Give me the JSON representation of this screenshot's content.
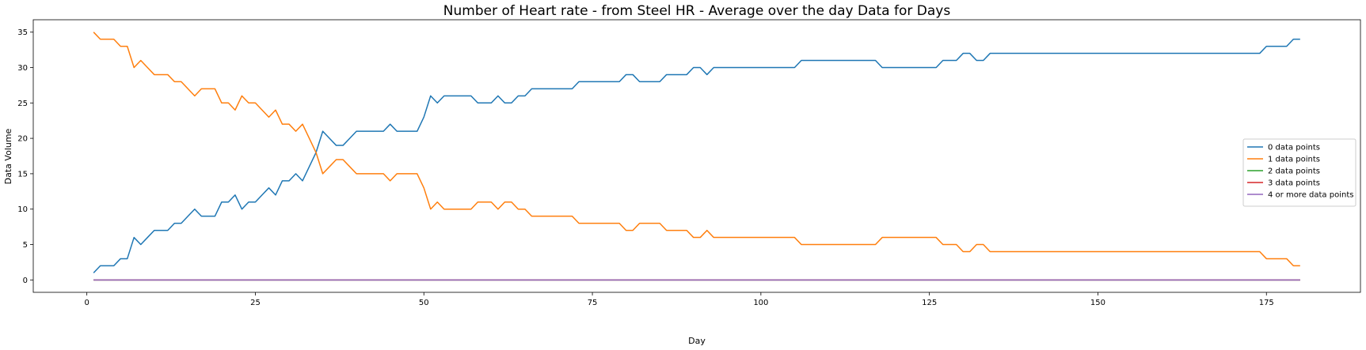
{
  "chart_data": {
    "type": "line",
    "title": "Number of Heart rate - from Steel HR - Average over the day Data for Days",
    "xlabel": "Day",
    "ylabel": "Data Volume",
    "xlim": [
      -7.95,
      188.95
    ],
    "ylim": [
      -1.75,
      36.75
    ],
    "xticks": [
      0,
      25,
      50,
      75,
      100,
      125,
      150,
      175
    ],
    "yticks": [
      0,
      5,
      10,
      15,
      20,
      25,
      30,
      35
    ],
    "grid": false,
    "legend_position": "center-right",
    "x_start": 1,
    "series": [
      {
        "name": "0 data points",
        "color": "#1f77b4",
        "values": [
          1,
          2,
          2,
          2,
          3,
          3,
          6,
          5,
          6,
          7,
          7,
          7,
          8,
          8,
          9,
          10,
          9,
          9,
          9,
          11,
          11,
          12,
          10,
          11,
          11,
          12,
          13,
          12,
          14,
          14,
          15,
          14,
          16,
          18,
          21,
          20,
          19,
          19,
          20,
          21,
          21,
          21,
          21,
          21,
          22,
          21,
          21,
          21,
          21,
          23,
          26,
          25,
          26,
          26,
          26,
          26,
          26,
          25,
          25,
          25,
          26,
          25,
          25,
          26,
          26,
          27,
          27,
          27,
          27,
          27,
          27,
          27,
          28,
          28,
          28,
          28,
          28,
          28,
          28,
          29,
          29,
          28,
          28,
          28,
          28,
          29,
          29,
          29,
          29,
          30,
          30,
          29,
          30,
          30,
          30,
          30,
          30,
          30,
          30,
          30,
          30,
          30,
          30,
          30,
          30,
          31,
          31,
          31,
          31,
          31,
          31,
          31,
          31,
          31,
          31,
          31,
          31,
          30,
          30,
          30,
          30,
          30,
          30,
          30,
          30,
          30,
          31,
          31,
          31,
          32,
          32,
          31,
          31,
          32,
          32,
          32,
          32,
          32,
          32,
          32,
          32,
          32,
          32,
          32,
          32,
          32,
          32,
          32,
          32,
          32,
          32,
          32,
          32,
          32,
          32,
          32,
          32,
          32,
          32,
          32,
          32,
          32,
          32,
          32,
          32,
          32,
          32,
          32,
          32,
          32,
          32,
          32,
          32,
          32,
          33,
          33,
          33,
          33,
          34,
          34
        ]
      },
      {
        "name": "1 data points",
        "color": "#ff7f0e",
        "values": [
          35,
          34,
          34,
          34,
          33,
          33,
          30,
          31,
          30,
          29,
          29,
          29,
          28,
          28,
          27,
          26,
          27,
          27,
          27,
          25,
          25,
          24,
          26,
          25,
          25,
          24,
          23,
          24,
          22,
          22,
          21,
          22,
          20,
          18,
          15,
          16,
          17,
          17,
          16,
          15,
          15,
          15,
          15,
          15,
          14,
          15,
          15,
          15,
          15,
          13,
          10,
          11,
          10,
          10,
          10,
          10,
          10,
          11,
          11,
          11,
          10,
          11,
          11,
          10,
          10,
          9,
          9,
          9,
          9,
          9,
          9,
          9,
          8,
          8,
          8,
          8,
          8,
          8,
          8,
          7,
          7,
          8,
          8,
          8,
          8,
          7,
          7,
          7,
          7,
          6,
          6,
          7,
          6,
          6,
          6,
          6,
          6,
          6,
          6,
          6,
          6,
          6,
          6,
          6,
          6,
          5,
          5,
          5,
          5,
          5,
          5,
          5,
          5,
          5,
          5,
          5,
          5,
          6,
          6,
          6,
          6,
          6,
          6,
          6,
          6,
          6,
          5,
          5,
          5,
          4,
          4,
          5,
          5,
          4,
          4,
          4,
          4,
          4,
          4,
          4,
          4,
          4,
          4,
          4,
          4,
          4,
          4,
          4,
          4,
          4,
          4,
          4,
          4,
          4,
          4,
          4,
          4,
          4,
          4,
          4,
          4,
          4,
          4,
          4,
          4,
          4,
          4,
          4,
          4,
          4,
          4,
          4,
          4,
          4,
          3,
          3,
          3,
          3,
          2,
          2
        ]
      },
      {
        "name": "2 data points",
        "color": "#2ca02c",
        "constant": 0
      },
      {
        "name": "3 data points",
        "color": "#d62728",
        "constant": 0
      },
      {
        "name": "4 or more data points",
        "color": "#9467bd",
        "constant": 0
      }
    ]
  }
}
